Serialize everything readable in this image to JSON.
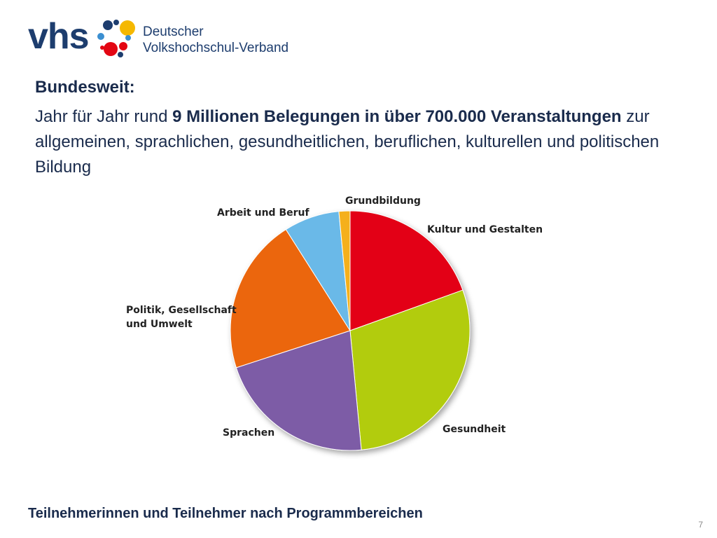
{
  "logo": {
    "mark": "vhs",
    "name_line1": "Deutscher",
    "name_line2": "Volkshochschul-Verband",
    "colors": [
      "#1d3d6e",
      "#f5b800",
      "#e30613",
      "#3b8fd1"
    ]
  },
  "heading": "Bundesweit:",
  "lead": {
    "part1": "Jahr für Jahr rund ",
    "bold": "9 Millionen Belegungen in über 700.000 Veranstaltungen",
    "part2": " zur allgemeinen, sprachlichen, gesundheitlichen, beruflichen, kulturellen und politischen Bildung"
  },
  "chart_data": {
    "type": "pie",
    "title": "",
    "start_angle_deg": 0,
    "direction": "clockwise",
    "slices": [
      {
        "label": "Kultur und Gestalten",
        "value": 19.5,
        "color": "#e30613"
      },
      {
        "label": "Gesundheit",
        "value": 29.0,
        "color": "#b2cc0c"
      },
      {
        "label": "Sprachen",
        "value": 21.5,
        "color": "#7d5ba6"
      },
      {
        "label": "Politik, Gesellschaft und Umwelt",
        "label_lines": [
          "Politik, Gesellschaft",
          "und Umwelt"
        ],
        "value": 21.0,
        "color": "#eb6608"
      },
      {
        "label": "Arbeit und Beruf",
        "value": 7.5,
        "color": "#6ab9e8"
      },
      {
        "label": "Grundbildung",
        "value": 1.5,
        "color": "#f5b01e"
      }
    ]
  },
  "caption": "Teilnehmerinnen und Teilnehmer nach Programmbereichen",
  "page_number": "7"
}
